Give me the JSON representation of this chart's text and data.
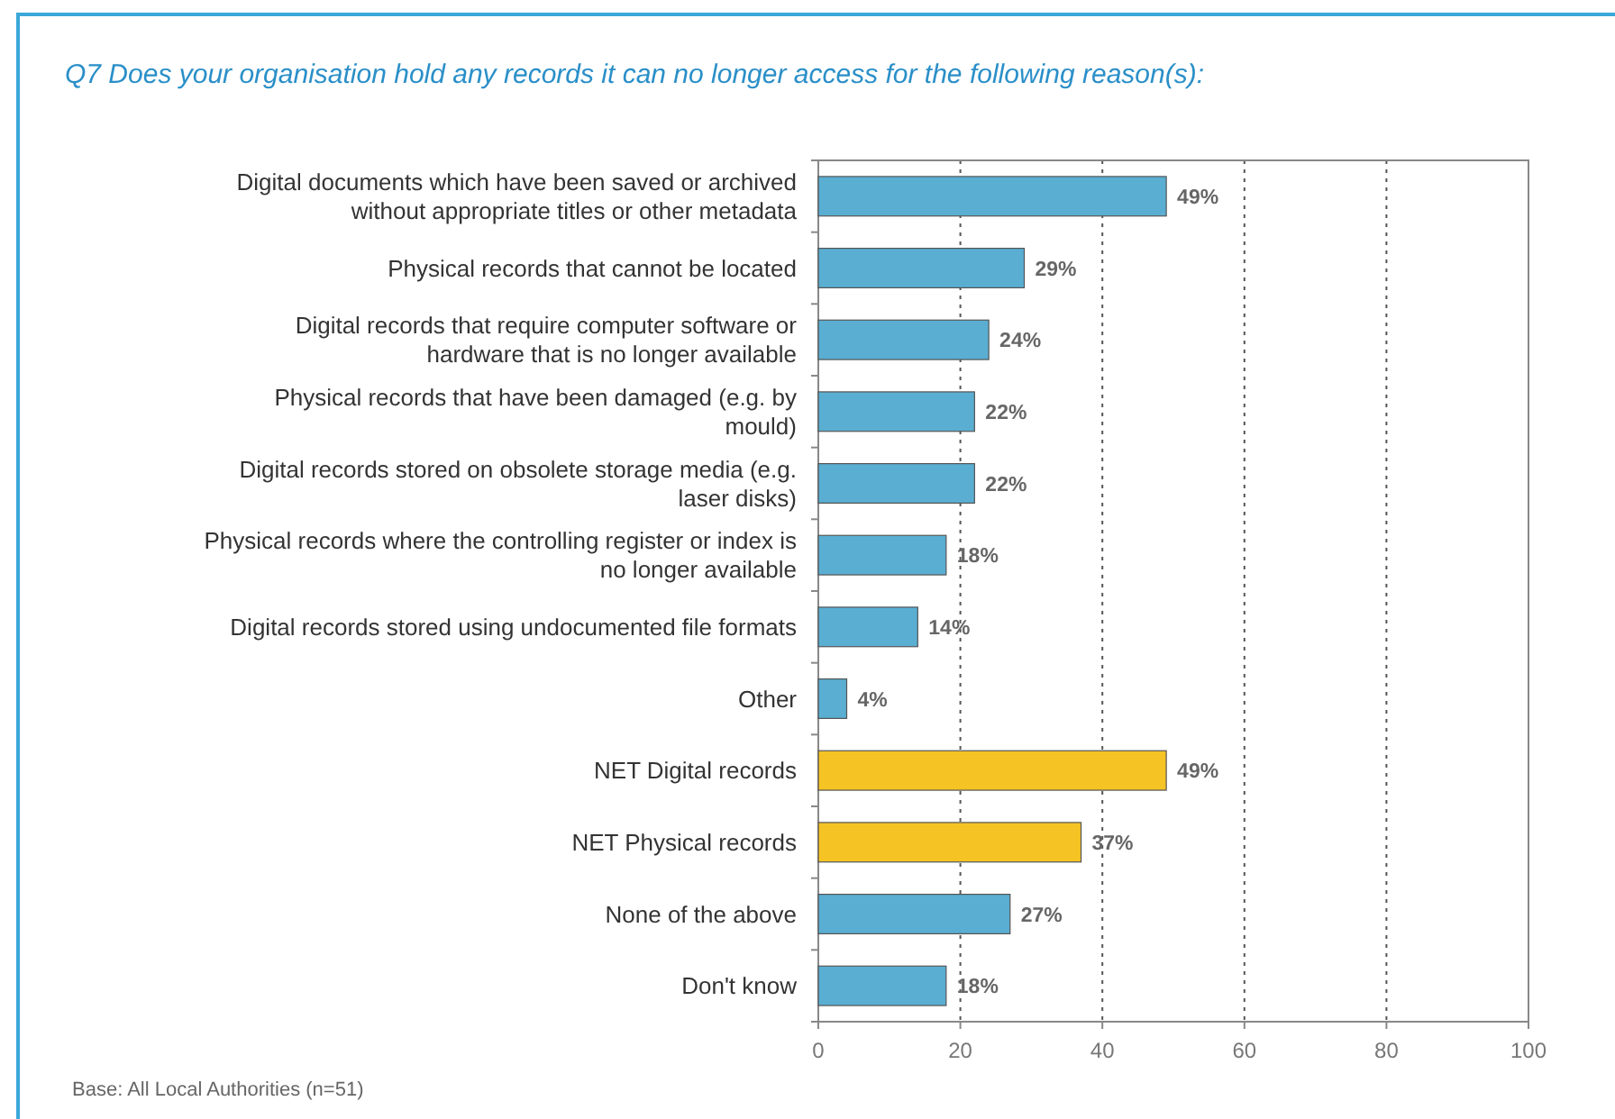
{
  "chart_data": {
    "type": "bar",
    "orientation": "horizontal",
    "title": "Q7 Does your organisation hold any records it can no longer access for the following reason(s):",
    "categories": [
      "Digital documents which have been saved or archived without appropriate titles or other metadata",
      "Physical records that cannot be located",
      "Digital records that require computer software or hardware that is no longer available",
      "Physical records that have been damaged (e.g. by mould)",
      "Digital records stored on obsolete storage media (e.g. laser disks)",
      "Physical records where the controlling register or index is no longer available",
      "Digital records stored using undocumented file formats",
      "Other",
      "NET Digital records",
      "NET Physical records",
      "None of the above",
      "Don't know"
    ],
    "values": [
      49,
      29,
      24,
      22,
      22,
      18,
      14,
      4,
      49,
      37,
      27,
      18
    ],
    "value_labels": [
      "49%",
      "29%",
      "24%",
      "22%",
      "22%",
      "18%",
      "14%",
      "4%",
      "49%",
      "37%",
      "27%",
      "18%"
    ],
    "colors": [
      "#5aaed2",
      "#5aaed2",
      "#5aaed2",
      "#5aaed2",
      "#5aaed2",
      "#5aaed2",
      "#5aaed2",
      "#5aaed2",
      "#f6c324",
      "#f6c324",
      "#5aaed2",
      "#5aaed2"
    ],
    "xlim": [
      0,
      100
    ],
    "xticks": [
      0,
      20,
      40,
      60,
      80,
      100
    ],
    "grid": "x",
    "annotations": [
      "Base: All Local Authorities (n=51)"
    ]
  }
}
